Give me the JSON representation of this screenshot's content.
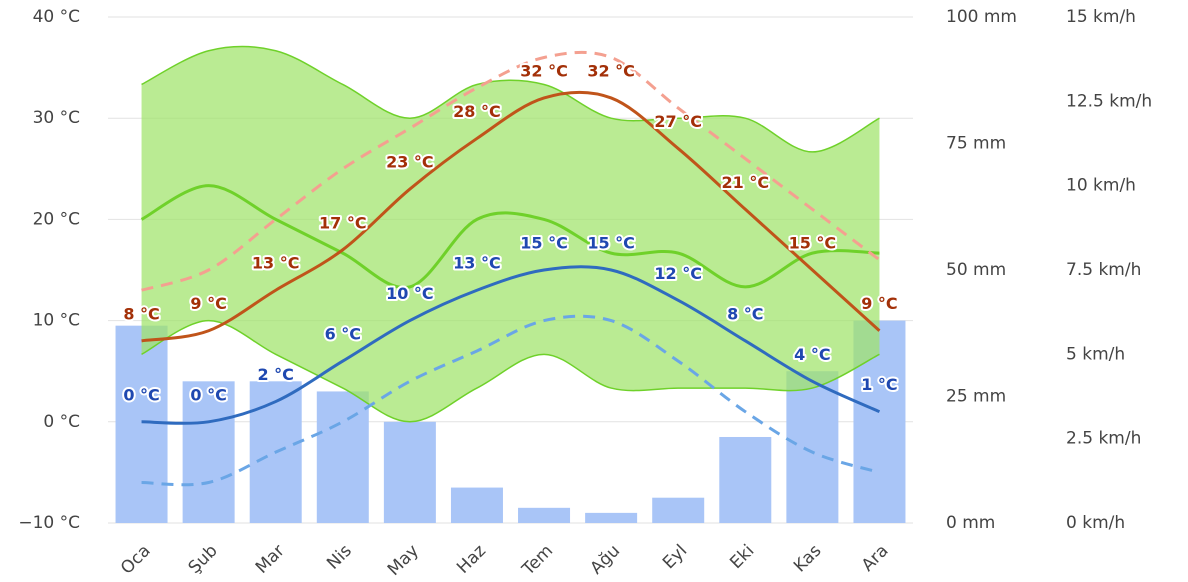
{
  "chart_data": {
    "type": "climate",
    "categories": [
      "Oca",
      "Şub",
      "Mar",
      "Nis",
      "May",
      "Haz",
      "Tem",
      "Ağu",
      "Eyl",
      "Eki",
      "Kas",
      "Ara"
    ],
    "ylim": [
      -10,
      40
    ],
    "yticks": [
      {
        "value": -10,
        "label": "−10 °C"
      },
      {
        "value": 0,
        "label": "0 °C"
      },
      {
        "value": 10,
        "label": "10 °C"
      },
      {
        "value": 20,
        "label": "20 °C"
      },
      {
        "value": 30,
        "label": "30 °C"
      },
      {
        "value": 40,
        "label": "40 °C"
      }
    ],
    "y2lim": [
      0,
      100
    ],
    "y2ticks": [
      {
        "value": 0,
        "label": "0 mm"
      },
      {
        "value": 25,
        "label": "25 mm"
      },
      {
        "value": 50,
        "label": "50 mm"
      },
      {
        "value": 75,
        "label": "75 mm"
      },
      {
        "value": 100,
        "label": "100 mm"
      }
    ],
    "y3lim": [
      0,
      15
    ],
    "y3ticks": [
      {
        "value": 0,
        "label": "0 km/h"
      },
      {
        "value": 2.5,
        "label": "2.5 km/h"
      },
      {
        "value": 5,
        "label": "5 km/h"
      },
      {
        "value": 7.5,
        "label": "7.5 km/h"
      },
      {
        "value": 10,
        "label": "10 km/h"
      },
      {
        "value": 12.5,
        "label": "12.5 km/h"
      },
      {
        "value": 15,
        "label": "15 km/h"
      }
    ],
    "grid": true,
    "precipitation": {
      "color": "#a9c5f7",
      "axis": "y2",
      "values": [
        39,
        28,
        28,
        26,
        20,
        7,
        3,
        2,
        5,
        17,
        30,
        40
      ]
    },
    "wind_band": {
      "color": "#9fe36a",
      "line_color": "#6fd12a",
      "axis": "y3",
      "upper": [
        13,
        14,
        14,
        13,
        12,
        13,
        13,
        12,
        12,
        12,
        11,
        12
      ],
      "mean": [
        9,
        10,
        9,
        8,
        7,
        9,
        9,
        8,
        8,
        7,
        8,
        8
      ],
      "lower": [
        5,
        6,
        5,
        4,
        3,
        4,
        5,
        4,
        4,
        4,
        4,
        5
      ]
    },
    "series": [
      {
        "color": "#f4a090",
        "dashed": true,
        "values": [
          13,
          15,
          20,
          25,
          29,
          33,
          36,
          36,
          31,
          26,
          21,
          16
        ]
      },
      {
        "color": "#6aa6e6",
        "dashed": true,
        "values": [
          -6,
          -6,
          -3,
          0,
          4,
          7,
          10,
          10,
          6,
          1,
          -3,
          -5
        ]
      },
      {
        "color": "#c0541a",
        "label_color": "#a33008",
        "values": [
          8,
          9,
          13,
          17,
          23,
          28,
          32,
          32,
          27,
          21,
          15,
          9
        ],
        "value_labels": [
          "8 °C",
          "9 °C",
          "13 °C",
          "17 °C",
          "23 °C",
          "28 °C",
          "32 °C",
          "32 °C",
          "27 °C",
          "21 °C",
          "15 °C",
          "9 °C"
        ]
      },
      {
        "color": "#2f6bbf",
        "label_color": "#1f48b0",
        "values": [
          0,
          0,
          2,
          6,
          10,
          13,
          15,
          15,
          12,
          8,
          4,
          1
        ],
        "value_labels": [
          "0 °C",
          "0 °C",
          "2 °C",
          "6 °C",
          "10 °C",
          "13 °C",
          "15 °C",
          "15 °C",
          "12 °C",
          "8 °C",
          "4 °C",
          "1 °C"
        ]
      }
    ]
  }
}
